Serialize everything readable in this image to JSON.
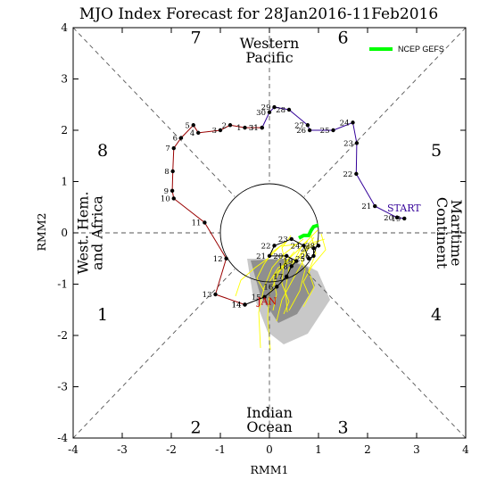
{
  "chart_data": {
    "type": "line",
    "title": "MJO Index Forecast for 28Jan2016-11Feb2016",
    "xlabel": "RMM1",
    "ylabel": "RMM2",
    "xlim": [
      -4,
      4
    ],
    "ylim": [
      -4,
      4
    ],
    "xticks": [
      "-4",
      "-3",
      "-2",
      "-1",
      "0",
      "1",
      "2",
      "3",
      "4"
    ],
    "yticks": [
      "-4",
      "-3",
      "-2",
      "-1",
      "0",
      "1",
      "2",
      "3",
      "4"
    ],
    "grid": false,
    "legend": "top-right",
    "legend_entries": [
      {
        "label": "NCEP GEFS",
        "color": "#00ff00"
      }
    ],
    "phase_numbers": [
      {
        "label": "1",
        "x": -3.4,
        "y": -1.6
      },
      {
        "label": "2",
        "x": -1.5,
        "y": -3.8
      },
      {
        "label": "3",
        "x": 1.5,
        "y": -3.8
      },
      {
        "label": "4",
        "x": 3.4,
        "y": -1.6
      },
      {
        "label": "5",
        "x": 3.4,
        "y": 1.6
      },
      {
        "label": "6",
        "x": 1.5,
        "y": 3.8
      },
      {
        "label": "7",
        "x": -1.5,
        "y": 3.8
      },
      {
        "label": "8",
        "x": -3.4,
        "y": 1.6
      }
    ],
    "regions": [
      {
        "lines": [
          "Western",
          "Pacific"
        ],
        "x": 0,
        "y": 3.55,
        "rotate": 0
      },
      {
        "lines": [
          "Indian",
          "Ocean"
        ],
        "x": 0,
        "y": -3.65,
        "rotate": 0
      },
      {
        "lines": [
          "West. Hem.",
          "and Africa"
        ],
        "x": -3.65,
        "y": 0,
        "rotate": -90
      },
      {
        "lines": [
          "Maritime",
          "Continent"
        ],
        "x": 3.65,
        "y": 0,
        "rotate": 90
      }
    ],
    "annotations": [
      {
        "text": "START",
        "x": 2.4,
        "y": 0.42,
        "color": "#330099"
      },
      {
        "text": "JAN",
        "x": -0.25,
        "y": -1.4,
        "color": "#cc0000"
      }
    ],
    "series": [
      {
        "color": "#990000",
        "points": [
          {
            "x": -0.5,
            "y": -1.4,
            "label": "14"
          },
          {
            "x": -1.1,
            "y": -1.2,
            "label": "13"
          },
          {
            "x": -0.88,
            "y": -0.5,
            "label": "12"
          },
          {
            "x": -1.32,
            "y": 0.2,
            "label": "11"
          },
          {
            "x": -1.95,
            "y": 0.67,
            "label": "10"
          },
          {
            "x": -1.98,
            "y": 0.82,
            "label": "9"
          },
          {
            "x": -1.97,
            "y": 1.2,
            "label": "8"
          },
          {
            "x": -1.95,
            "y": 1.65,
            "label": "7"
          },
          {
            "x": -1.8,
            "y": 1.85,
            "label": "6"
          },
          {
            "x": -1.55,
            "y": 2.1,
            "label": "5"
          },
          {
            "x": -1.45,
            "y": 1.95,
            "label": "4"
          },
          {
            "x": -1.0,
            "y": 2.0,
            "label": "3"
          },
          {
            "x": -0.8,
            "y": 2.1,
            "label": "2"
          },
          {
            "x": -0.5,
            "y": 2.05,
            "label": "1"
          },
          {
            "x": -0.15,
            "y": 2.05,
            "label": "31"
          }
        ]
      },
      {
        "color": "#330099",
        "points": [
          {
            "x": -0.15,
            "y": 2.05,
            "label": "31"
          },
          {
            "x": 0.0,
            "y": 2.35,
            "label": "30"
          },
          {
            "x": 0.1,
            "y": 2.45,
            "label": "29"
          },
          {
            "x": 0.4,
            "y": 2.4,
            "label": "28"
          },
          {
            "x": 0.78,
            "y": 2.1,
            "label": "27"
          },
          {
            "x": 0.82,
            "y": 2.0,
            "label": "26"
          },
          {
            "x": 1.3,
            "y": 2.0,
            "label": "25"
          },
          {
            "x": 1.7,
            "y": 2.15,
            "label": "24"
          },
          {
            "x": 1.78,
            "y": 1.75,
            "label": "23"
          },
          {
            "x": 1.77,
            "y": 1.15,
            "label": "22"
          },
          {
            "x": 2.15,
            "y": 0.52,
            "label": "21"
          },
          {
            "x": 2.6,
            "y": 0.3,
            "label": "20"
          },
          {
            "x": 2.75,
            "y": 0.28,
            "label": "19"
          }
        ]
      },
      {
        "color": "#000000",
        "points": [
          {
            "x": -0.5,
            "y": -1.4,
            "label": "14"
          },
          {
            "x": -0.1,
            "y": -1.25,
            "label": "15"
          },
          {
            "x": 0.15,
            "y": -1.05,
            "label": "16"
          },
          {
            "x": 0.35,
            "y": -0.85,
            "label": "17"
          },
          {
            "x": 0.45,
            "y": -0.65,
            "label": "18"
          },
          {
            "x": 0.55,
            "y": -0.55,
            "label": "19"
          },
          {
            "x": 0.35,
            "y": -0.45,
            "label": "20"
          },
          {
            "x": 0.0,
            "y": -0.45,
            "label": "21"
          },
          {
            "x": 0.1,
            "y": -0.25,
            "label": "22"
          },
          {
            "x": 0.45,
            "y": -0.12,
            "label": "23"
          },
          {
            "x": 0.7,
            "y": -0.25,
            "label": "24"
          },
          {
            "x": 0.8,
            "y": -0.5,
            "label": "25"
          },
          {
            "x": 0.9,
            "y": -0.45,
            "label": "26"
          },
          {
            "x": 0.9,
            "y": -0.3,
            "label": "27"
          },
          {
            "x": 1.0,
            "y": -0.25,
            "label": "28"
          }
        ]
      },
      {
        "name": "NCEP GEFS",
        "color": "#00ff00",
        "points": [
          {
            "x": 0.6,
            "y": -0.1
          },
          {
            "x": 0.7,
            "y": -0.05
          },
          {
            "x": 0.8,
            "y": -0.05
          },
          {
            "x": 0.85,
            "y": 0.05
          },
          {
            "x": 0.9,
            "y": 0.12
          },
          {
            "x": 1.0,
            "y": 0.15
          }
        ]
      }
    ]
  }
}
